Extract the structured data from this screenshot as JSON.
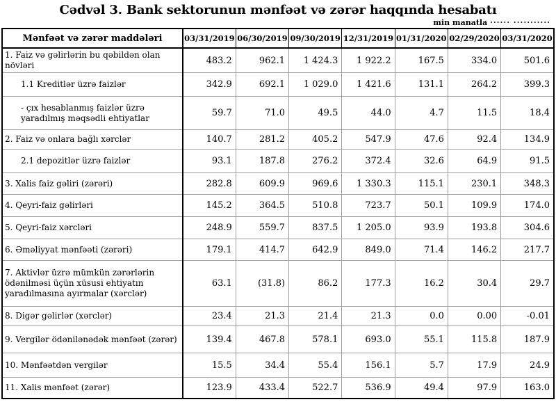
{
  "title": "Cədvəl 3. Bank sektorunun mənfəət və zərər haqqında hesabatı",
  "unit_note": {
    "label": "min manatla",
    "dots": "······ ···········"
  },
  "table": {
    "header": {
      "label_column": "Mənfəət və zərər maddələri",
      "date_columns": [
        "03/31/2019",
        "06/30/2019",
        "09/30/2019",
        "12/31/2019",
        "01/31/2020",
        "02/29/2020",
        "03/31/2020"
      ]
    },
    "rows": [
      {
        "label": "1. Faiz və gəlirlərin bu qəbildən olan növləri",
        "indent": 0,
        "values": [
          "483.2",
          "962.1",
          "1 424.3",
          "1 922.2",
          "167.5",
          "334.0",
          "501.6"
        ]
      },
      {
        "label": "1.1 Kreditlər üzrə faizlər",
        "indent": 1,
        "values": [
          "342.9",
          "692.1",
          "1 029.0",
          "1 421.6",
          "131.1",
          "264.2",
          "399.3"
        ]
      },
      {
        "label": "-  çıx hesablanmış faizlər üzrə yaradılmış məqsədli ehtiyatlar",
        "indent": 1,
        "values": [
          "59.7",
          "71.0",
          "49.5",
          "44.0",
          "4.7",
          "11.5",
          "18.4"
        ]
      },
      {
        "label": "2. Faiz və onlara bağlı xərclər",
        "indent": 0,
        "values": [
          "140.7",
          "281.2",
          "405.2",
          "547.9",
          "47.6",
          "92.4",
          "134.9"
        ]
      },
      {
        "label": "2.1 depozitlər üzrə faizlər",
        "indent": 1,
        "values": [
          "93.1",
          "187.8",
          "276.2",
          "372.4",
          "32.6",
          "64.9",
          "91.5"
        ]
      },
      {
        "label": "3. Xalis faiz gəliri (zərəri)",
        "indent": 0,
        "values": [
          "282.8",
          "609.9",
          "969.6",
          "1 330.3",
          "115.1",
          "230.1",
          "348.3"
        ]
      },
      {
        "label": "4. Qeyri-faiz gəlirləri",
        "indent": 0,
        "values": [
          "145.2",
          "364.5",
          "510.8",
          "723.7",
          "50.1",
          "109.9",
          "174.0"
        ]
      },
      {
        "label": "5. Qeyri-faiz xərcləri",
        "indent": 0,
        "values": [
          "248.9",
          "559.7",
          "837.5",
          "1 205.0",
          "93.9",
          "193.8",
          "304.6"
        ]
      },
      {
        "label": "6. Əməliyyat mənfəəti (zərəri)",
        "indent": 0,
        "values": [
          "179.1",
          "414.7",
          "642.9",
          "849.0",
          "71.4",
          "146.2",
          "217.7"
        ]
      },
      {
        "label": "7. Aktivlər üzrə mümkün zərərlərin ödənilməsi üçün xüsusi ehtiyatın yaradılmasına ayırmalar (xərclər)",
        "indent": 0,
        "values": [
          "63.1",
          "(31.8)",
          "86.2",
          "177.3",
          "16.2",
          "30.4",
          "29.7"
        ]
      },
      {
        "label": "8. Digər gəlirlər (xərclər)",
        "indent": 0,
        "values": [
          "23.4",
          "21.3",
          "21.4",
          "21.3",
          "0.0",
          "0.00",
          "-0.01"
        ]
      },
      {
        "label": "9. Vergilər ödənilənədək mənfəət (zərər)",
        "indent": 0,
        "values": [
          "139.4",
          "467.8",
          "578.1",
          "693.0",
          "55.1",
          "115.8",
          "187.9"
        ]
      },
      {
        "label": "10. Mənfəətdən vergilər",
        "indent": 0,
        "values": [
          "15.5",
          "34.4",
          "55.4",
          "156.1",
          "5.7",
          "17.9",
          "24.9"
        ]
      },
      {
        "label": "11. Xalis mənfəət (zərər)",
        "indent": 0,
        "values": [
          "123.9",
          "433.4",
          "522.7",
          "536.9",
          "49.4",
          "97.9",
          "163.0"
        ]
      }
    ]
  }
}
